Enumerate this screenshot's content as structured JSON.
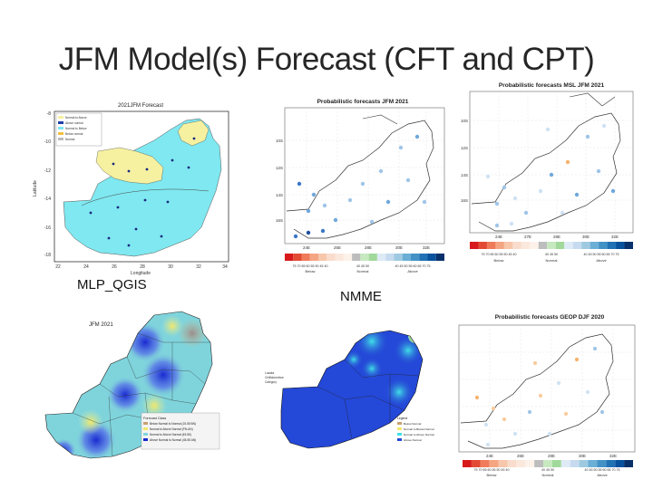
{
  "slide": {
    "title": "JFM Model(s) Forecast (CFT and CPT)",
    "caption_left": "MLP_QGIS",
    "caption_mid": "NMME"
  },
  "panel_qgis_top": {
    "title": "2021JFM Forecast",
    "ylabel": "Latitude",
    "xlabel": "Longitude",
    "y_ticks": [
      "-8",
      "-10",
      "-12",
      "-14",
      "-16",
      "-18"
    ],
    "x_ticks": [
      "22",
      "24",
      "26",
      "28",
      "30",
      "32",
      "34"
    ],
    "legend": [
      "Normal to Above",
      "Above normal",
      "Normal to Below",
      "Below normal",
      "Normal"
    ],
    "colors": {
      "cyan": "#7fe8f0",
      "yellow": "#f6f1a0",
      "frame": "#333333"
    }
  },
  "panel_nmme": {
    "title": "Probabilistic forecasts JFM 2021",
    "y_ticks": [
      "10S",
      "12S",
      "14S",
      "16S"
    ],
    "x_ticks": [
      "24E",
      "26E",
      "28E",
      "30E",
      "32E"
    ],
    "scale_labels": "75 70 65 60 55 50 45 40",
    "scale_mid": "40 45 50",
    "scale_right": "40 45 50 55 60 65 70 75",
    "legend": [
      "Below",
      "Normal",
      "Above"
    ]
  },
  "panel_msl": {
    "title": "Probabilistic forecasts MSL JFM 2021",
    "y_ticks": [
      "10S",
      "12S",
      "14S",
      "16S"
    ],
    "x_ticks": [
      "24E",
      "27E",
      "28E",
      "30E",
      "32E"
    ],
    "scale_labels": "75 70 65 60 55 50 45 40",
    "scale_mid": "40 45 50",
    "scale_right": "40 45 50 55 60 65 70 75",
    "legend": [
      "Below",
      "Normal",
      "Above"
    ]
  },
  "panel_qgis_bottom": {
    "title": "JFM 2021",
    "legend_title": "Forecast Class",
    "legend": [
      "Below Normal to Normal (15-55 BN)",
      "Normal to Above Normal (PN-AN)",
      "Normal to Above Normal (45-55)",
      "Above Normal to Normal (45-55 AN)"
    ]
  },
  "panel_nmme_map": {
    "legend_title": "Legend",
    "legend": [
      "Below Normal",
      "Normal to Below Normal",
      "Normal to Above Normal",
      "Above Normal"
    ],
    "side_text": [
      "Lusaka",
      "Chililabombwe",
      "Category"
    ]
  },
  "panel_geop": {
    "title": "Probabilistic forecasts GEOP DJF 2020",
    "x_ticks": [
      "24E",
      "26E",
      "28E",
      "30E",
      "32E"
    ],
    "scale_labels": "75 70 65 60 55 50 45 40",
    "scale_mid": "40 45 50",
    "scale_right": "40 45 50 55 60 65 70 75",
    "legend": [
      "Below",
      "Normal",
      "Above"
    ]
  }
}
